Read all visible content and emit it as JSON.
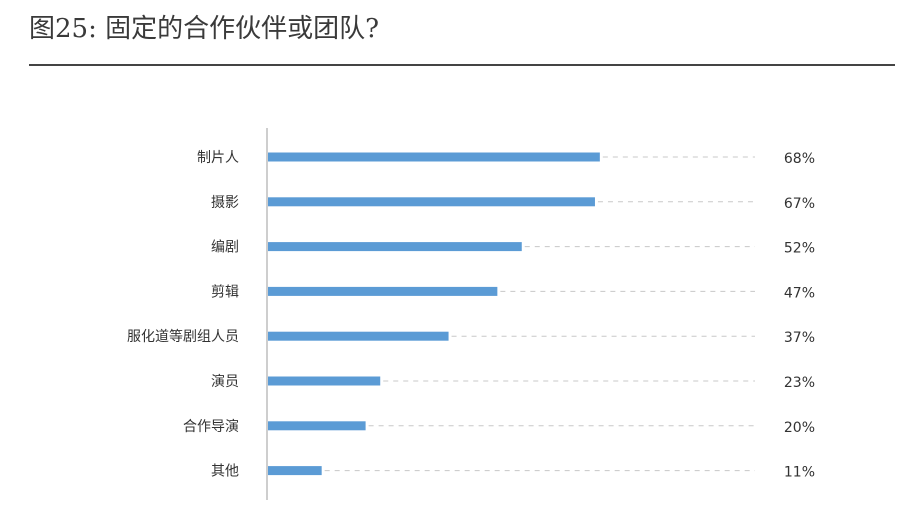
{
  "header": {
    "title": "图25: 固定的合作伙伴或团队?"
  },
  "colors": {
    "bar": "#5b9bd5",
    "guide": "#c8c8c8",
    "axis": "#bdbdbd"
  },
  "chart_data": {
    "type": "bar",
    "orientation": "horizontal",
    "categories": [
      "制片人",
      "摄影",
      "编剧",
      "剪辑",
      "服化道等剧组人员",
      "演员",
      "合作导演",
      "其他"
    ],
    "values": [
      68,
      67,
      52,
      47,
      37,
      23,
      20,
      11
    ],
    "value_labels": [
      "68%",
      "67%",
      "52%",
      "47%",
      "37%",
      "23%",
      "20%",
      "11%"
    ],
    "unit": "%",
    "xlim": [
      0,
      100
    ],
    "grid": false
  }
}
